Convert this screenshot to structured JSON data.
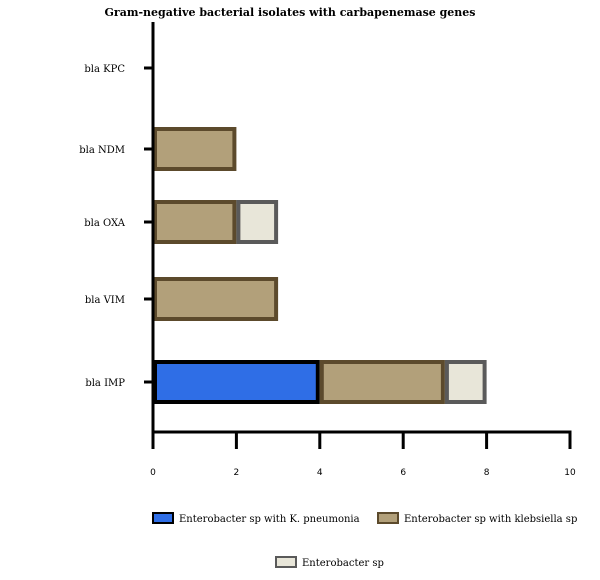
{
  "chart_data": {
    "type": "bar",
    "orientation": "horizontal",
    "stacked": true,
    "title": "Gram-negative bacterial isolates with carbapenemase genes",
    "xlabel": "",
    "ylabel": "",
    "categories": [
      "bla IMP",
      "bla VIM",
      "bla OXA",
      "bla NDM",
      "bla KPC"
    ],
    "xlim": [
      0,
      10
    ],
    "xticks": [
      0,
      2,
      4,
      6,
      8,
      10
    ],
    "grid": false,
    "legend_position": "bottom",
    "series": [
      {
        "name": "Enterobacter sp with K. pneumonia",
        "values": [
          4,
          0,
          0,
          0,
          0
        ],
        "fill": "#2f6ee6",
        "stroke": "#000000"
      },
      {
        "name": "Enterobacter sp with klebsiella sp",
        "values": [
          3,
          3,
          2,
          2,
          0
        ],
        "fill": "#b2a07a",
        "stroke": "#5c4a2c"
      },
      {
        "name": "Enterobacter sp",
        "values": [
          1,
          0,
          1,
          0,
          0
        ],
        "fill": "#e8e6d9",
        "stroke": "#5a5a5a"
      }
    ]
  }
}
